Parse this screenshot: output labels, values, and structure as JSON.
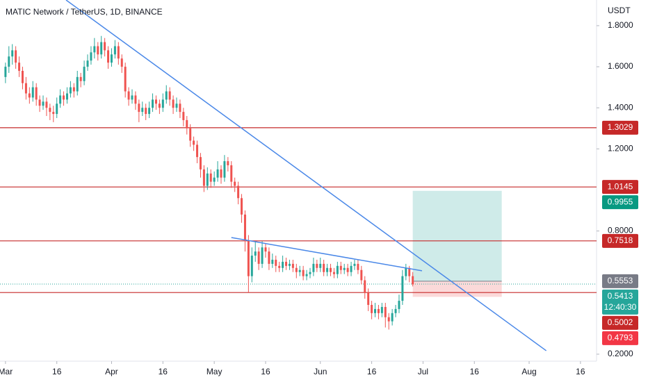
{
  "chart_data": {
    "type": "candlestick",
    "title": "MATIC Network / TetherUS, 1D, BINANCE",
    "y_axis_label": "USDT",
    "up_color": "#26a69a",
    "down_color": "#ef5350",
    "xlim": [
      -1.6,
      172.7
    ],
    "ylim": [
      0.166,
      1.925
    ],
    "xticks": [
      {
        "value": 0,
        "label": "Mar"
      },
      {
        "value": 15,
        "label": "16"
      },
      {
        "value": 31,
        "label": "Apr"
      },
      {
        "value": 46,
        "label": "16"
      },
      {
        "value": 61,
        "label": "May"
      },
      {
        "value": 76,
        "label": "16"
      },
      {
        "value": 92,
        "label": "Jun"
      },
      {
        "value": 107,
        "label": "16"
      },
      {
        "value": 122,
        "label": "Jul"
      },
      {
        "value": 137,
        "label": "16"
      },
      {
        "value": 153,
        "label": "Aug"
      },
      {
        "value": 168,
        "label": "16"
      }
    ],
    "yticks": [
      {
        "value": 1.8,
        "label": "1.8000"
      },
      {
        "value": 1.6,
        "label": "1.6000"
      },
      {
        "value": 1.4,
        "label": "1.4000"
      },
      {
        "value": 1.2,
        "label": "1.2000"
      },
      {
        "value": 0.8,
        "label": "0.8000"
      },
      {
        "value": 0.2,
        "label": "0.2000"
      }
    ],
    "x": [
      0,
      1,
      2,
      3,
      4,
      5,
      6,
      7,
      8,
      9,
      10,
      11,
      12,
      13,
      14,
      15,
      16,
      17,
      18,
      19,
      20,
      21,
      22,
      23,
      24,
      25,
      26,
      27,
      28,
      29,
      30,
      31,
      32,
      33,
      34,
      35,
      36,
      37,
      38,
      39,
      40,
      41,
      42,
      43,
      44,
      45,
      46,
      47,
      48,
      49,
      50,
      51,
      52,
      53,
      54,
      55,
      56,
      57,
      58,
      59,
      60,
      61,
      62,
      63,
      64,
      65,
      66,
      67,
      68,
      69,
      70,
      71,
      72,
      73,
      74,
      75,
      76,
      77,
      78,
      79,
      80,
      81,
      82,
      83,
      84,
      85,
      86,
      87,
      88,
      89,
      90,
      91,
      92,
      93,
      94,
      95,
      96,
      97,
      98,
      99,
      100,
      101,
      102,
      103,
      104,
      105,
      106,
      107,
      108,
      109,
      110,
      111,
      112,
      113,
      114,
      115,
      116,
      117,
      118,
      119
    ],
    "ohlc": [
      [
        1.55,
        1.62,
        1.52,
        1.6
      ],
      [
        1.6,
        1.7,
        1.57,
        1.65
      ],
      [
        1.65,
        1.71,
        1.61,
        1.68
      ],
      [
        1.68,
        1.7,
        1.59,
        1.62
      ],
      [
        1.62,
        1.65,
        1.55,
        1.58
      ],
      [
        1.58,
        1.6,
        1.49,
        1.52
      ],
      [
        1.52,
        1.55,
        1.44,
        1.47
      ],
      [
        1.47,
        1.5,
        1.42,
        1.45
      ],
      [
        1.45,
        1.53,
        1.43,
        1.5
      ],
      [
        1.5,
        1.52,
        1.41,
        1.44
      ],
      [
        1.44,
        1.46,
        1.38,
        1.41
      ],
      [
        1.41,
        1.46,
        1.39,
        1.43
      ],
      [
        1.43,
        1.45,
        1.36,
        1.4
      ],
      [
        1.4,
        1.42,
        1.34,
        1.38
      ],
      [
        1.38,
        1.41,
        1.33,
        1.37
      ],
      [
        1.37,
        1.45,
        1.35,
        1.42
      ],
      [
        1.42,
        1.49,
        1.4,
        1.46
      ],
      [
        1.46,
        1.48,
        1.41,
        1.44
      ],
      [
        1.44,
        1.5,
        1.42,
        1.47
      ],
      [
        1.47,
        1.53,
        1.45,
        1.5
      ],
      [
        1.5,
        1.52,
        1.45,
        1.48
      ],
      [
        1.48,
        1.58,
        1.46,
        1.55
      ],
      [
        1.55,
        1.57,
        1.5,
        1.53
      ],
      [
        1.53,
        1.63,
        1.51,
        1.6
      ],
      [
        1.6,
        1.66,
        1.58,
        1.63
      ],
      [
        1.63,
        1.7,
        1.61,
        1.67
      ],
      [
        1.67,
        1.74,
        1.64,
        1.7
      ],
      [
        1.7,
        1.72,
        1.63,
        1.66
      ],
      [
        1.66,
        1.75,
        1.64,
        1.72
      ],
      [
        1.72,
        1.74,
        1.65,
        1.68
      ],
      [
        1.68,
        1.7,
        1.59,
        1.62
      ],
      [
        1.62,
        1.69,
        1.6,
        1.66
      ],
      [
        1.66,
        1.73,
        1.64,
        1.7
      ],
      [
        1.7,
        1.72,
        1.61,
        1.64
      ],
      [
        1.64,
        1.66,
        1.57,
        1.6
      ],
      [
        1.6,
        1.62,
        1.45,
        1.48
      ],
      [
        1.48,
        1.5,
        1.41,
        1.44
      ],
      [
        1.44,
        1.49,
        1.42,
        1.46
      ],
      [
        1.46,
        1.48,
        1.39,
        1.42
      ],
      [
        1.42,
        1.44,
        1.33,
        1.38
      ],
      [
        1.38,
        1.43,
        1.36,
        1.4
      ],
      [
        1.4,
        1.42,
        1.34,
        1.37
      ],
      [
        1.37,
        1.43,
        1.35,
        1.4
      ],
      [
        1.4,
        1.47,
        1.38,
        1.44
      ],
      [
        1.44,
        1.46,
        1.39,
        1.42
      ],
      [
        1.42,
        1.44,
        1.37,
        1.4
      ],
      [
        1.4,
        1.47,
        1.38,
        1.44
      ],
      [
        1.44,
        1.51,
        1.42,
        1.48
      ],
      [
        1.48,
        1.5,
        1.41,
        1.44
      ],
      [
        1.44,
        1.46,
        1.37,
        1.4
      ],
      [
        1.4,
        1.45,
        1.38,
        1.42
      ],
      [
        1.42,
        1.44,
        1.35,
        1.38
      ],
      [
        1.38,
        1.4,
        1.31,
        1.34
      ],
      [
        1.34,
        1.36,
        1.27,
        1.3
      ],
      [
        1.3,
        1.32,
        1.21,
        1.24
      ],
      [
        1.24,
        1.26,
        1.19,
        1.22
      ],
      [
        1.22,
        1.24,
        1.13,
        1.16
      ],
      [
        1.16,
        1.18,
        1.06,
        1.1
      ],
      [
        1.1,
        1.12,
        0.99,
        1.02
      ],
      [
        1.02,
        1.11,
        1.0,
        1.08
      ],
      [
        1.08,
        1.1,
        1.01,
        1.04
      ],
      [
        1.04,
        1.09,
        1.02,
        1.06
      ],
      [
        1.06,
        1.14,
        1.04,
        1.1
      ],
      [
        1.1,
        1.12,
        1.03,
        1.06
      ],
      [
        1.06,
        1.17,
        1.04,
        1.14
      ],
      [
        1.14,
        1.16,
        1.09,
        1.12
      ],
      [
        1.12,
        1.14,
        1.01,
        1.04
      ],
      [
        1.04,
        1.06,
        0.99,
        1.02
      ],
      [
        1.02,
        1.04,
        0.93,
        0.96
      ],
      [
        0.96,
        0.98,
        0.84,
        0.88
      ],
      [
        0.88,
        0.9,
        0.7,
        0.75
      ],
      [
        0.75,
        0.78,
        0.5,
        0.58
      ],
      [
        0.58,
        0.72,
        0.55,
        0.68
      ],
      [
        0.68,
        0.75,
        0.65,
        0.7
      ],
      [
        0.7,
        0.72,
        0.61,
        0.64
      ],
      [
        0.64,
        0.75,
        0.62,
        0.72
      ],
      [
        0.72,
        0.74,
        0.67,
        0.7
      ],
      [
        0.7,
        0.72,
        0.61,
        0.64
      ],
      [
        0.64,
        0.69,
        0.62,
        0.66
      ],
      [
        0.66,
        0.68,
        0.6,
        0.63
      ],
      [
        0.63,
        0.65,
        0.6,
        0.62
      ],
      [
        0.62,
        0.68,
        0.6,
        0.65
      ],
      [
        0.65,
        0.67,
        0.61,
        0.63
      ],
      [
        0.63,
        0.66,
        0.61,
        0.64
      ],
      [
        0.64,
        0.66,
        0.6,
        0.62
      ],
      [
        0.62,
        0.64,
        0.57,
        0.6
      ],
      [
        0.6,
        0.63,
        0.58,
        0.61
      ],
      [
        0.61,
        0.63,
        0.56,
        0.58
      ],
      [
        0.58,
        0.61,
        0.56,
        0.59
      ],
      [
        0.59,
        0.62,
        0.57,
        0.6
      ],
      [
        0.6,
        0.67,
        0.58,
        0.64
      ],
      [
        0.64,
        0.66,
        0.6,
        0.62
      ],
      [
        0.62,
        0.67,
        0.6,
        0.64
      ],
      [
        0.64,
        0.66,
        0.58,
        0.6
      ],
      [
        0.6,
        0.64,
        0.58,
        0.62
      ],
      [
        0.62,
        0.64,
        0.58,
        0.6
      ],
      [
        0.6,
        0.62,
        0.57,
        0.59
      ],
      [
        0.59,
        0.65,
        0.57,
        0.63
      ],
      [
        0.63,
        0.65,
        0.59,
        0.61
      ],
      [
        0.61,
        0.64,
        0.59,
        0.62
      ],
      [
        0.62,
        0.64,
        0.58,
        0.6
      ],
      [
        0.6,
        0.65,
        0.58,
        0.63
      ],
      [
        0.63,
        0.66,
        0.61,
        0.64
      ],
      [
        0.64,
        0.66,
        0.59,
        0.61
      ],
      [
        0.61,
        0.63,
        0.54,
        0.56
      ],
      [
        0.56,
        0.58,
        0.47,
        0.5
      ],
      [
        0.5,
        0.52,
        0.41,
        0.44
      ],
      [
        0.44,
        0.46,
        0.37,
        0.4
      ],
      [
        0.4,
        0.45,
        0.38,
        0.42
      ],
      [
        0.42,
        0.44,
        0.37,
        0.4
      ],
      [
        0.4,
        0.45,
        0.38,
        0.43
      ],
      [
        0.43,
        0.45,
        0.33,
        0.38
      ],
      [
        0.38,
        0.4,
        0.32,
        0.36
      ],
      [
        0.36,
        0.42,
        0.34,
        0.4
      ],
      [
        0.4,
        0.44,
        0.38,
        0.42
      ],
      [
        0.42,
        0.49,
        0.4,
        0.46
      ],
      [
        0.46,
        0.61,
        0.44,
        0.58
      ],
      [
        0.58,
        0.64,
        0.56,
        0.62
      ],
      [
        0.62,
        0.63,
        0.55,
        0.58
      ],
      [
        0.58,
        0.6,
        0.53,
        0.54
      ]
    ],
    "hlines": [
      1.3029,
      1.0145,
      0.7518,
      0.5002
    ],
    "hline_color": "#c62828",
    "trendline_color": "#4a88e8",
    "trendlines": [
      {
        "x": [
          17.7,
          158
        ],
        "y": [
          1.925,
          0.217
        ]
      },
      {
        "x": [
          66,
          121.7
        ],
        "y": [
          0.768,
          0.606
        ]
      }
    ],
    "position": {
      "x": [
        119,
        145
      ],
      "entry": 0.5553,
      "target": 0.9955,
      "stop": 0.4793
    },
    "last_price": 0.5413,
    "countdown": "12:40:30"
  }
}
